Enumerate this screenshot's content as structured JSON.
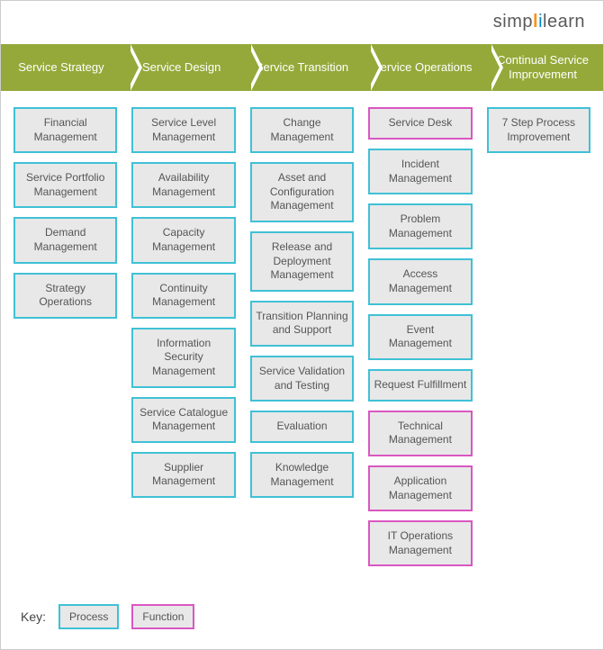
{
  "logo": {
    "part1": "simp",
    "part2": "l",
    "part3": "i",
    "part4": "learn"
  },
  "colors": {
    "header_bg": "#94a93a",
    "header_text": "#ffffff",
    "box_bg": "#e8e8e8",
    "process_border": "#3fc1d6",
    "function_border": "#d957c1",
    "text": "#555555"
  },
  "headers": [
    "Service Strategy",
    "Service Design",
    "Service Transition",
    "Service Operations",
    "Continual Service Improvement"
  ],
  "columns": [
    {
      "items": [
        {
          "label": "Financial Management",
          "type": "process"
        },
        {
          "label": "Service Portfolio Management",
          "type": "process"
        },
        {
          "label": "Demand Management",
          "type": "process"
        },
        {
          "label": "Strategy Operations",
          "type": "process"
        }
      ]
    },
    {
      "items": [
        {
          "label": "Service Level Management",
          "type": "process"
        },
        {
          "label": "Availability Management",
          "type": "process"
        },
        {
          "label": "Capacity Management",
          "type": "process"
        },
        {
          "label": "Continuity Management",
          "type": "process"
        },
        {
          "label": "Information Security Management",
          "type": "process"
        },
        {
          "label": "Service Catalogue Management",
          "type": "process"
        },
        {
          "label": "Supplier Management",
          "type": "process"
        }
      ]
    },
    {
      "items": [
        {
          "label": "Change Management",
          "type": "process"
        },
        {
          "label": "Asset and Configuration Management",
          "type": "process"
        },
        {
          "label": "Release and Deployment Management",
          "type": "process"
        },
        {
          "label": "Transition Planning and Support",
          "type": "process"
        },
        {
          "label": "Service Validation and Testing",
          "type": "process"
        },
        {
          "label": "Evaluation",
          "type": "process"
        },
        {
          "label": "Knowledge Management",
          "type": "process"
        }
      ]
    },
    {
      "items": [
        {
          "label": "Service Desk",
          "type": "function"
        },
        {
          "label": "Incident Management",
          "type": "process"
        },
        {
          "label": "Problem Management",
          "type": "process"
        },
        {
          "label": "Access Management",
          "type": "process"
        },
        {
          "label": "Event Management",
          "type": "process"
        },
        {
          "label": "Request Fulfillment",
          "type": "process"
        },
        {
          "label": "Technical Management",
          "type": "function"
        },
        {
          "label": "Application Management",
          "type": "function"
        },
        {
          "label": "IT Operations Management",
          "type": "function"
        }
      ]
    },
    {
      "items": [
        {
          "label": "7 Step Process Improvement",
          "type": "process"
        }
      ]
    }
  ],
  "key": {
    "label": "Key:",
    "process": "Process",
    "function": "Function"
  }
}
